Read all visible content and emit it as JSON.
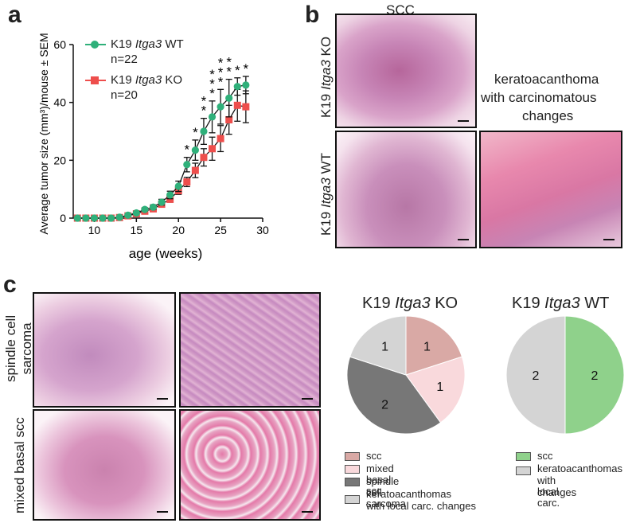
{
  "panels": {
    "a": "a",
    "b": "b",
    "c": "c"
  },
  "colors": {
    "wt": "#2fb07a",
    "ko": "#ee4e4c",
    "scc": "#d9a9a5",
    "mixed_basal_scc": "#f9d9dc",
    "spindle_cell_sarcoma": "#777777",
    "keratoacanthomas": "#d4d4d4",
    "scc_wt": "#8fd18b"
  },
  "chart_data": [
    {
      "type": "line",
      "xlabel": "age (weeks)",
      "ylabel": "Average tumor size (mm³)/mouse ± SEM",
      "xlim": [
        7.5,
        30
      ],
      "ylim": [
        0,
        60
      ],
      "xticks": [
        "10",
        "15",
        "20",
        "25",
        "30"
      ],
      "yticks": [
        "0",
        "20",
        "40",
        "60"
      ],
      "x": [
        8,
        9,
        10,
        11,
        12,
        13,
        14,
        15,
        16,
        17,
        18,
        19,
        20,
        21,
        22,
        23,
        24,
        25,
        26,
        27,
        28
      ],
      "series": [
        {
          "name": "K19 Itga3 WT",
          "n": "n=22",
          "values": [
            0,
            0,
            0,
            0,
            0,
            0.3,
            1.0,
            1.8,
            3.0,
            3.8,
            5.5,
            8.0,
            11.0,
            18.5,
            23.5,
            30.0,
            35.0,
            38.5,
            41.5,
            45.5,
            46.0
          ],
          "err": [
            0,
            0,
            0,
            0,
            0,
            0.2,
            0.4,
            0.5,
            0.6,
            0.8,
            1.0,
            1.3,
            1.8,
            2.5,
            3.5,
            4.5,
            5.5,
            6.0,
            6.5,
            3.0,
            3.0
          ]
        },
        {
          "name": "K19 Itga3 KO",
          "n": "n=20",
          "values": [
            0,
            0,
            0,
            0,
            0,
            0.2,
            0.8,
            1.5,
            2.4,
            3.2,
            4.8,
            6.5,
            9.5,
            12.5,
            16.5,
            21.0,
            24.0,
            27.5,
            34.0,
            39.0,
            38.5
          ],
          "err": [
            0,
            0,
            0,
            0,
            0,
            0.2,
            0.3,
            0.4,
            0.5,
            0.6,
            0.8,
            1.0,
            1.3,
            1.6,
            2.5,
            3.0,
            4.0,
            4.5,
            5.0,
            5.5,
            5.5
          ]
        }
      ],
      "significance": [
        {
          "x": 21,
          "label": "*"
        },
        {
          "x": 22,
          "label": "*"
        },
        {
          "x": 23,
          "label": "**"
        },
        {
          "x": 24,
          "label": "***"
        },
        {
          "x": 25,
          "label": "***"
        },
        {
          "x": 26,
          "label": "**"
        },
        {
          "x": 27,
          "label": "*"
        },
        {
          "x": 28,
          "label": "*"
        }
      ]
    },
    {
      "type": "pie",
      "title": "K19 Itga3 KO",
      "slices": [
        {
          "name": "scc",
          "value": 1
        },
        {
          "name": "mixed basal scc",
          "value": 1
        },
        {
          "name": "spindle cell sarcoma",
          "value": 2
        },
        {
          "name": "keratoacanthomas with local carc. changes",
          "value": 1
        }
      ]
    },
    {
      "type": "pie",
      "title": "K19 Itga3 WT",
      "slices": [
        {
          "name": "scc",
          "value": 2
        },
        {
          "name": "keratoacanthomas with local carc. changes",
          "value": 2
        }
      ]
    }
  ],
  "panel_b": {
    "scc_label": "SCC",
    "ka_label_1": "keratoacanthoma",
    "ka_label_2": "with carcinomatous",
    "ka_label_3": "changes",
    "row_ko": "K19 Itga3 KO",
    "row_wt": "K19 Itga3 WT"
  },
  "panel_c": {
    "row1_line1": "spindle cell",
    "row1_line2": "sarcoma",
    "row2": "mixed basal scc",
    "pie_ko_title_pre": "K19 ",
    "pie_ko_title_gene": "Itga3",
    "pie_ko_title_post": " KO",
    "pie_wt_title_pre": "K19 ",
    "pie_wt_title_gene": "Itga3",
    "pie_wt_title_post": " WT",
    "legend_ko": [
      "scc",
      "mixed basal scc",
      "spindle cell sarcoma",
      "keratoacanthomas",
      "with local carc. changes"
    ],
    "legend_wt": [
      "scc",
      "keratoacanthomas",
      "with local carc.",
      "changes"
    ],
    "pie_ko_labels": [
      "1",
      "1",
      "2",
      "1"
    ],
    "pie_wt_labels": [
      "2",
      "2"
    ]
  },
  "legend_a": {
    "wt_pre": "K19 ",
    "wt_gene": "Itga3",
    "wt_post": " WT",
    "wt_n": "n=22",
    "ko_pre": "K19 ",
    "ko_gene": "Itga3",
    "ko_post": " KO",
    "ko_n": "n=20"
  }
}
